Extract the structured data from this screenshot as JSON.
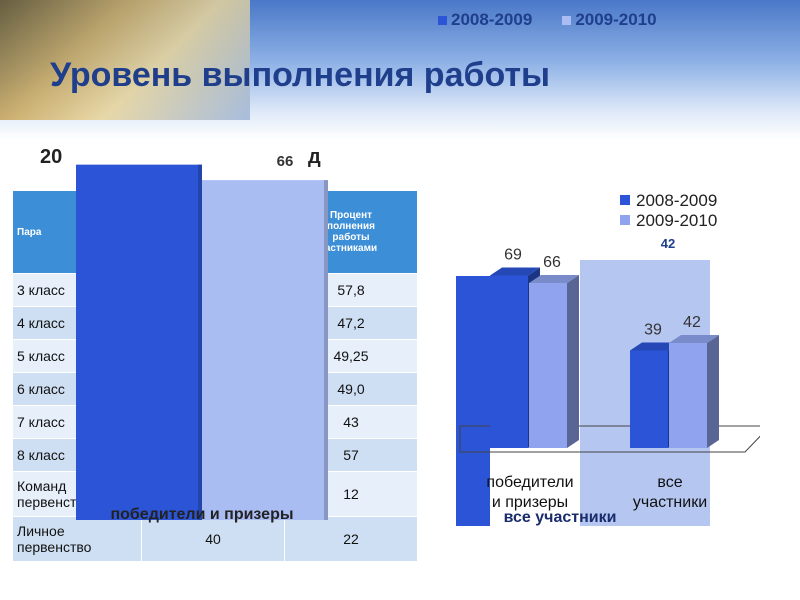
{
  "page": {
    "title": "Уровень выполнения работы",
    "subtitle": "20",
    "subtitle_right": "д"
  },
  "top_legend": [
    {
      "label": "2008-2009",
      "color": "#2b55d6"
    },
    {
      "label": "2009-2010",
      "color": "#a9bdf3"
    }
  ],
  "table": {
    "headers": [
      "Пара",
      "",
      "Процент\nполнения\nработы\nастниками"
    ],
    "rows": [
      {
        "label": "3 класс",
        "col2": "",
        "value": "57,8"
      },
      {
        "label": "4 класс",
        "col2": "",
        "value": "47,2"
      },
      {
        "label": "5 класс",
        "col2": "",
        "value": "49,25"
      },
      {
        "label": "6 класс",
        "col2": "",
        "value": "49,0"
      },
      {
        "label": "7 класс",
        "col2": "",
        "value": "43"
      },
      {
        "label": "8 класс",
        "col2": "",
        "value": "57"
      },
      {
        "label": "Команд\nпервенство",
        "col2": "",
        "value": "12"
      },
      {
        "label": "Личное\nпервенство",
        "col2": "40",
        "value": "22"
      }
    ]
  },
  "chart_data": [
    {
      "type": "bar",
      "categories": [
        "победители и призеры"
      ],
      "series": [
        {
          "name": "2008-2009",
          "values": [
            69
          ],
          "color": "#2b55d6"
        },
        {
          "name": "2009-2010",
          "values": [
            66
          ],
          "color": "#a9bdf3"
        }
      ],
      "data_labels": [
        "",
        "66"
      ],
      "ylim": [
        0,
        80
      ]
    },
    {
      "type": "bar",
      "categories": [
        "победители\nи призеры",
        "все\nучастники"
      ],
      "series": [
        {
          "name": "2008-2009",
          "values": [
            69,
            39
          ],
          "color": "#2b55d6"
        },
        {
          "name": "2009-2010",
          "values": [
            66,
            42
          ],
          "color": "#8fa3ee"
        }
      ],
      "legend_position": "top-right",
      "ylim": [
        0,
        80
      ],
      "ghost_category": "все участники",
      "ghost_value_label": "42"
    }
  ]
}
